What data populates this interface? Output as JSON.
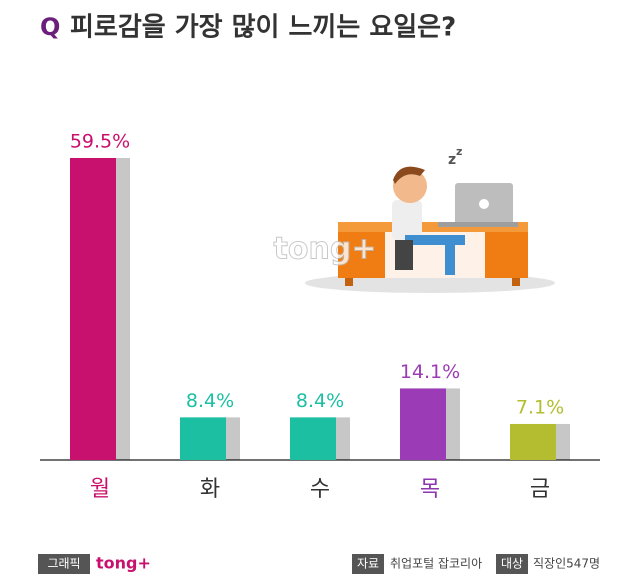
{
  "chart_data": {
    "type": "bar",
    "title_prefix": "Q",
    "title": "피로감을 가장 많이 느끼는 요일은?",
    "categories": [
      "월",
      "화",
      "수",
      "목",
      "금"
    ],
    "values": [
      59.5,
      8.4,
      8.4,
      14.1,
      7.1
    ],
    "value_labels": [
      "59.5%",
      "8.4%",
      "8.4%",
      "14.1%",
      "7.1%"
    ],
    "colors": [
      "#c8106e",
      "#1dbfa3",
      "#1dbfa3",
      "#9b3bb5",
      "#b3bd2f"
    ],
    "label_colors": [
      "#c8106e",
      "#333333",
      "#333333",
      "#8e35b0",
      "#333333"
    ],
    "watermark": "tong+",
    "footer": {
      "graphic_label": "그래픽",
      "brand": "tong+",
      "source_label": "자료",
      "source": "취업포털 잡코리아",
      "target_label": "대상",
      "target": "직장인547명"
    }
  }
}
